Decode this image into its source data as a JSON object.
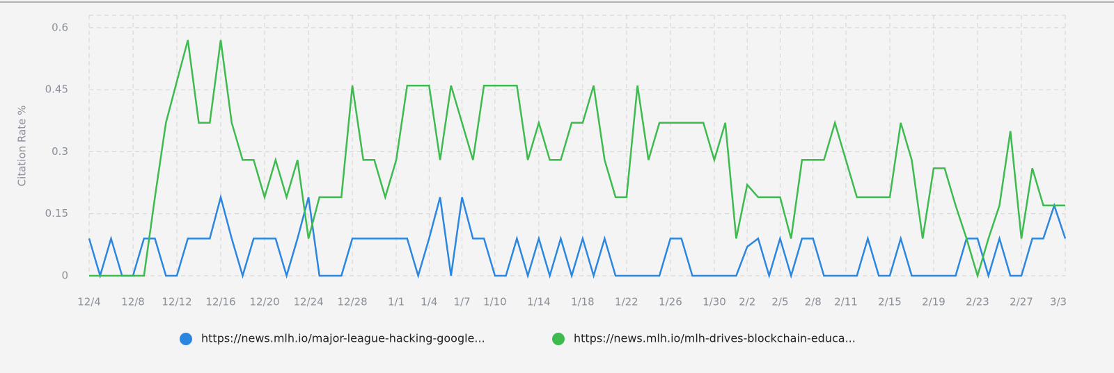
{
  "chart_data": {
    "type": "line",
    "y_label": "Citation Rate %",
    "categories": [
      "12/4",
      null,
      null,
      null,
      "12/8",
      null,
      null,
      null,
      "12/12",
      null,
      null,
      null,
      "12/16",
      null,
      null,
      null,
      "12/20",
      null,
      null,
      null,
      "12/24",
      null,
      null,
      null,
      "12/28",
      null,
      null,
      null,
      "1/1",
      null,
      null,
      "1/4",
      null,
      null,
      "1/7",
      null,
      null,
      "1/10",
      null,
      null,
      null,
      "1/14",
      null,
      null,
      null,
      "1/18",
      null,
      null,
      null,
      "1/22",
      null,
      null,
      null,
      "1/26",
      null,
      null,
      null,
      "1/30",
      null,
      null,
      "2/2",
      null,
      null,
      "2/5",
      null,
      null,
      "2/8",
      null,
      null,
      "2/11",
      null,
      null,
      null,
      "2/15",
      null,
      null,
      null,
      "2/19",
      null,
      null,
      null,
      "2/23",
      null,
      null,
      null,
      "2/27",
      null,
      null,
      null,
      "3/3"
    ],
    "series": [
      {
        "name": "https://news.mlh.io/major-league-hacking-google...",
        "color": "#2b86e0",
        "values": [
          0.09,
          0,
          0.09,
          0,
          0,
          0.09,
          0.09,
          0,
          0,
          0.09,
          0.09,
          0.09,
          0.19,
          0.09,
          0,
          0.09,
          0.09,
          0.09,
          0,
          0.09,
          0.19,
          0,
          0,
          0,
          0.09,
          0.09,
          0.09,
          0.09,
          0.09,
          0.09,
          0,
          0.09,
          0.19,
          0,
          0.19,
          0.09,
          0.09,
          0,
          0,
          0.09,
          0,
          0.09,
          0,
          0.09,
          0,
          0.09,
          0,
          0.09,
          0,
          0,
          0,
          0,
          0,
          0.09,
          0.09,
          0,
          0,
          0,
          0,
          0,
          0.07,
          0.09,
          0,
          0.09,
          0,
          0.09,
          0.09,
          0,
          0,
          0,
          0,
          0.09,
          0,
          0,
          0.09,
          0,
          0,
          0,
          0,
          0,
          0.09,
          0.09,
          0,
          0.09,
          0,
          0,
          0.09,
          0.09,
          0.17,
          0.09
        ]
      },
      {
        "name": "https://news.mlh.io/mlh-drives-blockchain-educa...",
        "color": "#3dbb4f",
        "values": [
          0,
          0,
          0,
          0,
          0,
          0,
          0.19,
          0.37,
          0.47,
          0.57,
          0.37,
          0.37,
          0.57,
          0.37,
          0.28,
          0.28,
          0.19,
          0.28,
          0.19,
          0.28,
          0.09,
          0.19,
          0.19,
          0.19,
          0.46,
          0.28,
          0.28,
          0.19,
          0.28,
          0.46,
          0.46,
          0.46,
          0.28,
          0.46,
          0.37,
          0.28,
          0.46,
          0.46,
          0.46,
          0.46,
          0.28,
          0.37,
          0.28,
          0.28,
          0.37,
          0.37,
          0.46,
          0.28,
          0.19,
          0.19,
          0.46,
          0.28,
          0.37,
          0.37,
          0.37,
          0.37,
          0.37,
          0.28,
          0.37,
          0.09,
          0.22,
          0.19,
          0.19,
          0.19,
          0.09,
          0.28,
          0.28,
          0.28,
          0.37,
          0.28,
          0.19,
          0.19,
          0.19,
          0.19,
          0.37,
          0.28,
          0.09,
          0.26,
          0.26,
          0.17,
          0.09,
          0,
          0.09,
          0.17,
          0.35,
          0.09,
          0.26,
          0.17,
          0.17,
          0.17
        ]
      }
    ],
    "ylim": [
      0,
      0.63
    ],
    "yticks": [
      0,
      0.15,
      0.3,
      0.45,
      0.6
    ],
    "grid": true
  }
}
